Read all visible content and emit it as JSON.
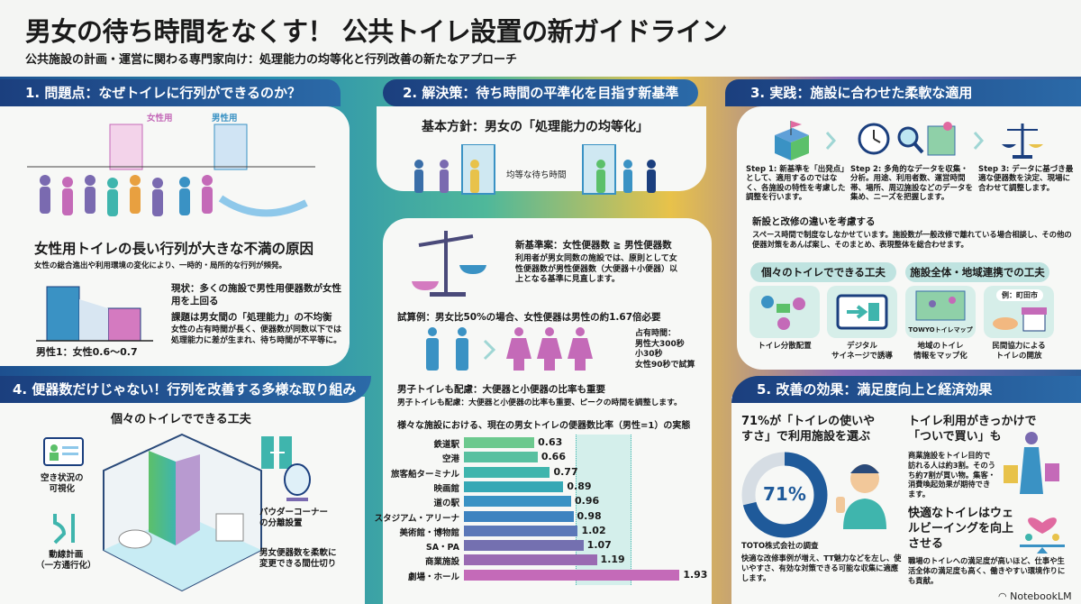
{
  "title": "男女の待ち時間をなくす！ 公共トイレ設置の新ガイドライン",
  "subtitle": "公共施設の計画・運営に関わる専門家向け：処理能力の均等化と行列改善の新たなアプローチ",
  "section1": {
    "header": "1. 問題点：なぜトイレに行列ができるのか？",
    "label_female": "女性用",
    "label_male": "男性用",
    "heading": "女性用トイレの長い行列が大きな不満の原因",
    "desc": "女性の総合進出や利用環境の変化により、一時的・局所的な行列が頻発。",
    "ratio": "男性1：女性0.6〜0.7",
    "status_heading": "現状：多くの施設で男性用便器数が女性用を上回る",
    "issue_heading": "課題は男女間の「処理能力」の不均衡",
    "issue_text": "女性の占有時間が長く、便器数が同数以下では処理能力に差が生まれ、待ち時間が不平等に。"
  },
  "section2": {
    "header": "2. 解決策：待ち時間の平準化を目指す新基準",
    "policy": "基本方針：男女の「処理能力の均等化」",
    "equal_wait": "均等な待ち時間",
    "standard_heading": "新基準案：女性便器数 ≧ 男性便器数",
    "standard_text": "利用者が男女同数の施設では、原則として女性便器数が男性便器数（大便器＋小便器）以上となる基準に見直します。",
    "calc_heading": "試算例：男女比50%の場合、女性便器は男性の約1.67倍必要",
    "occupancy": [
      "占有時間：",
      "男性大300秒",
      "小30秒",
      "女性90秒で試算"
    ],
    "male_heading": "男子トイレも配慮：大便器と小便器の比率も重要",
    "male_text": "男子トイレも配慮：大便器と小便器の比率も重要、ピークの時間を調整します。"
  },
  "chart_data": {
    "type": "bar",
    "orientation": "horizontal",
    "title": "様々な施設における、現在の男女トイレの便器数比率（男性=1）の実態",
    "categories": [
      "鉄道駅",
      "空港",
      "旅客船ターミナル",
      "映画館",
      "道の駅",
      "スタジアム・アリーナ",
      "美術館・博物館",
      "SA・PA",
      "商業施設",
      "劇場・ホール"
    ],
    "values": [
      0.63,
      0.66,
      0.77,
      0.89,
      0.96,
      0.98,
      1.02,
      1.07,
      1.19,
      1.93
    ],
    "highlight_band": [
      1.0,
      1.5
    ],
    "xlim": [
      0,
      2
    ],
    "colors": [
      "#6cc98e",
      "#58c0a0",
      "#3fb5ad",
      "#36a8b5",
      "#3a92c4",
      "#3d83c0",
      "#5c78b8",
      "#7470b0",
      "#9a6ab2",
      "#c46ab8"
    ]
  },
  "section3": {
    "header": "3. 実践：施設に合わせた柔軟な適用",
    "steps": [
      "Step 1: 新基準を「出発点」として、適用するのではなく、各施設の特性を考慮した調整を行います。",
      "Step 2: 多角的なデータを収集・分析。用途、利用者数、運営時間帯、場所、周辺施設などのデータを集め、ニーズを把握します。",
      "Step 3: データに基づき最適な便器数を決定、現場に合わせて調整します。"
    ],
    "consider_heading": "新設と改修の違いを考慮する",
    "consider_text": "スペース時間で制度なしなかせています。施設数が一般改修で離れている場合相談し、その他の便器対策をあんば案し、そのまとめ、表現整体を総合わせます。",
    "tag_individual": "個々のトイレでできる工夫",
    "tag_facility": "施設全体・地域連携での工夫",
    "cards": [
      "トイレ分散配置",
      "デジタル\nサイネージで誘導",
      "地域のトイレ\n情報をマップ化",
      "民間協力による\nトイレの開放"
    ],
    "map_label": "TOWYOトイレマップ",
    "example": "例：町田市"
  },
  "section4": {
    "header": "4. 便器数だけじゃない！行列を改善する多様な取り組み",
    "heading": "個々のトイレでできる工夫",
    "labels": [
      "空き状況の\n可視化",
      "動線計画\n（一方通行化）",
      "パウダーコーナー\nの分離設置",
      "男女便器数を柔軟に\n変更できる間仕切り"
    ]
  },
  "section5": {
    "header": "5. 改善の効果：満足度向上と経済効果",
    "stat_heading": "71%が「トイレの使いやすさ」で利用施設を選ぶ",
    "donut_value": 71,
    "donut_label": "71%",
    "source": "TOTO株式会社の調査",
    "stat_text": "快適な改修事例が増え、TT魅力などを左し、使いやすさ、有効な対策できる可能な収集に適應します。",
    "shopping_heading": "トイレ利用がきっかけで「ついで買い」も",
    "shopping_text": "商業施設をトイレ目的で訪れる人は約3割。そのうち約7割が買い物。集客・消費喚起効果が期待できます。",
    "wellbeing_heading": "快適なトイレはウェルビーイングを向上させる",
    "wellbeing_text": "職場のトイレへの満足度が高いほど、仕事や生活全体の満足度も高く、働きやすい環境作りにも貢献。"
  },
  "brand": "NotebookLM",
  "colors": {
    "navy": "#1b3f7e",
    "teal": "#2a8fb0",
    "female": "#c46ab8",
    "male": "#3a92c4"
  }
}
